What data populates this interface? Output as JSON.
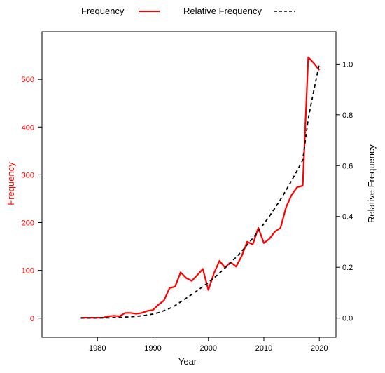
{
  "chart_data": {
    "type": "line",
    "xlabel": "Year",
    "ylabel_left": "Frequency",
    "ylabel_right": "Relative Frequency",
    "xlim": [
      1970,
      2023
    ],
    "ylim_left": [
      -40,
      600
    ],
    "ylim_right": [
      -0.0755,
      1.128
    ],
    "x_ticks": [
      1980,
      1990,
      2000,
      2010,
      2020
    ],
    "y_ticks_left": [
      0,
      100,
      200,
      300,
      400,
      500
    ],
    "y_ticks_right": [
      "0.0",
      "0.2",
      "0.4",
      "0.6",
      "0.8",
      "1.0"
    ],
    "legend_position": "top",
    "grid": false,
    "colors": {
      "frequency": "#ff0000",
      "relative_frequency": "#000000",
      "left_axis": "#ff0000",
      "right_axis": "#000000"
    },
    "series": [
      {
        "name": "Frequency",
        "axis": "left",
        "style": "solid",
        "x": [
          1977,
          1978,
          1979,
          1980,
          1981,
          1982,
          1983,
          1984,
          1985,
          1986,
          1987,
          1988,
          1989,
          1990,
          1991,
          1992,
          1993,
          1994,
          1995,
          1996,
          1997,
          1998,
          1999,
          2000,
          2001,
          2002,
          2003,
          2004,
          2005,
          2006,
          2007,
          2008,
          2009,
          2010,
          2011,
          2012,
          2013,
          2014,
          2015,
          2016,
          2017,
          2018,
          2019,
          2020
        ],
        "y": [
          1,
          1,
          1,
          1,
          1,
          4,
          5,
          4,
          11,
          11,
          9,
          11,
          15,
          17,
          28,
          37,
          63,
          66,
          96,
          84,
          78,
          90,
          103,
          59,
          94,
          120,
          106,
          117,
          108,
          130,
          160,
          154,
          189,
          157,
          166,
          181,
          189,
          232,
          258,
          274,
          277,
          546,
          534,
          519
        ]
      },
      {
        "name": "Relative Frequency",
        "axis": "right",
        "style": "dashed",
        "x": [
          1977,
          1978,
          1979,
          1980,
          1981,
          1982,
          1983,
          1984,
          1985,
          1986,
          1987,
          1988,
          1989,
          1990,
          1991,
          1992,
          1993,
          1994,
          1995,
          1996,
          1997,
          1998,
          1999,
          2000,
          2001,
          2002,
          2003,
          2004,
          2005,
          2006,
          2007,
          2008,
          2009,
          2010,
          2011,
          2012,
          2013,
          2014,
          2015,
          2016,
          2017,
          2018,
          2019,
          2020
        ],
        "y": [
          0.0,
          0.0,
          0.0,
          0.0,
          0.001,
          0.001,
          0.002,
          0.003,
          0.004,
          0.005,
          0.007,
          0.009,
          0.012,
          0.016,
          0.021,
          0.029,
          0.038,
          0.049,
          0.064,
          0.078,
          0.093,
          0.108,
          0.124,
          0.14,
          0.158,
          0.177,
          0.197,
          0.218,
          0.24,
          0.263,
          0.288,
          0.314,
          0.342,
          0.371,
          0.401,
          0.433,
          0.467,
          0.503,
          0.541,
          0.58,
          0.622,
          0.785,
          0.895,
          1.0
        ]
      }
    ]
  }
}
